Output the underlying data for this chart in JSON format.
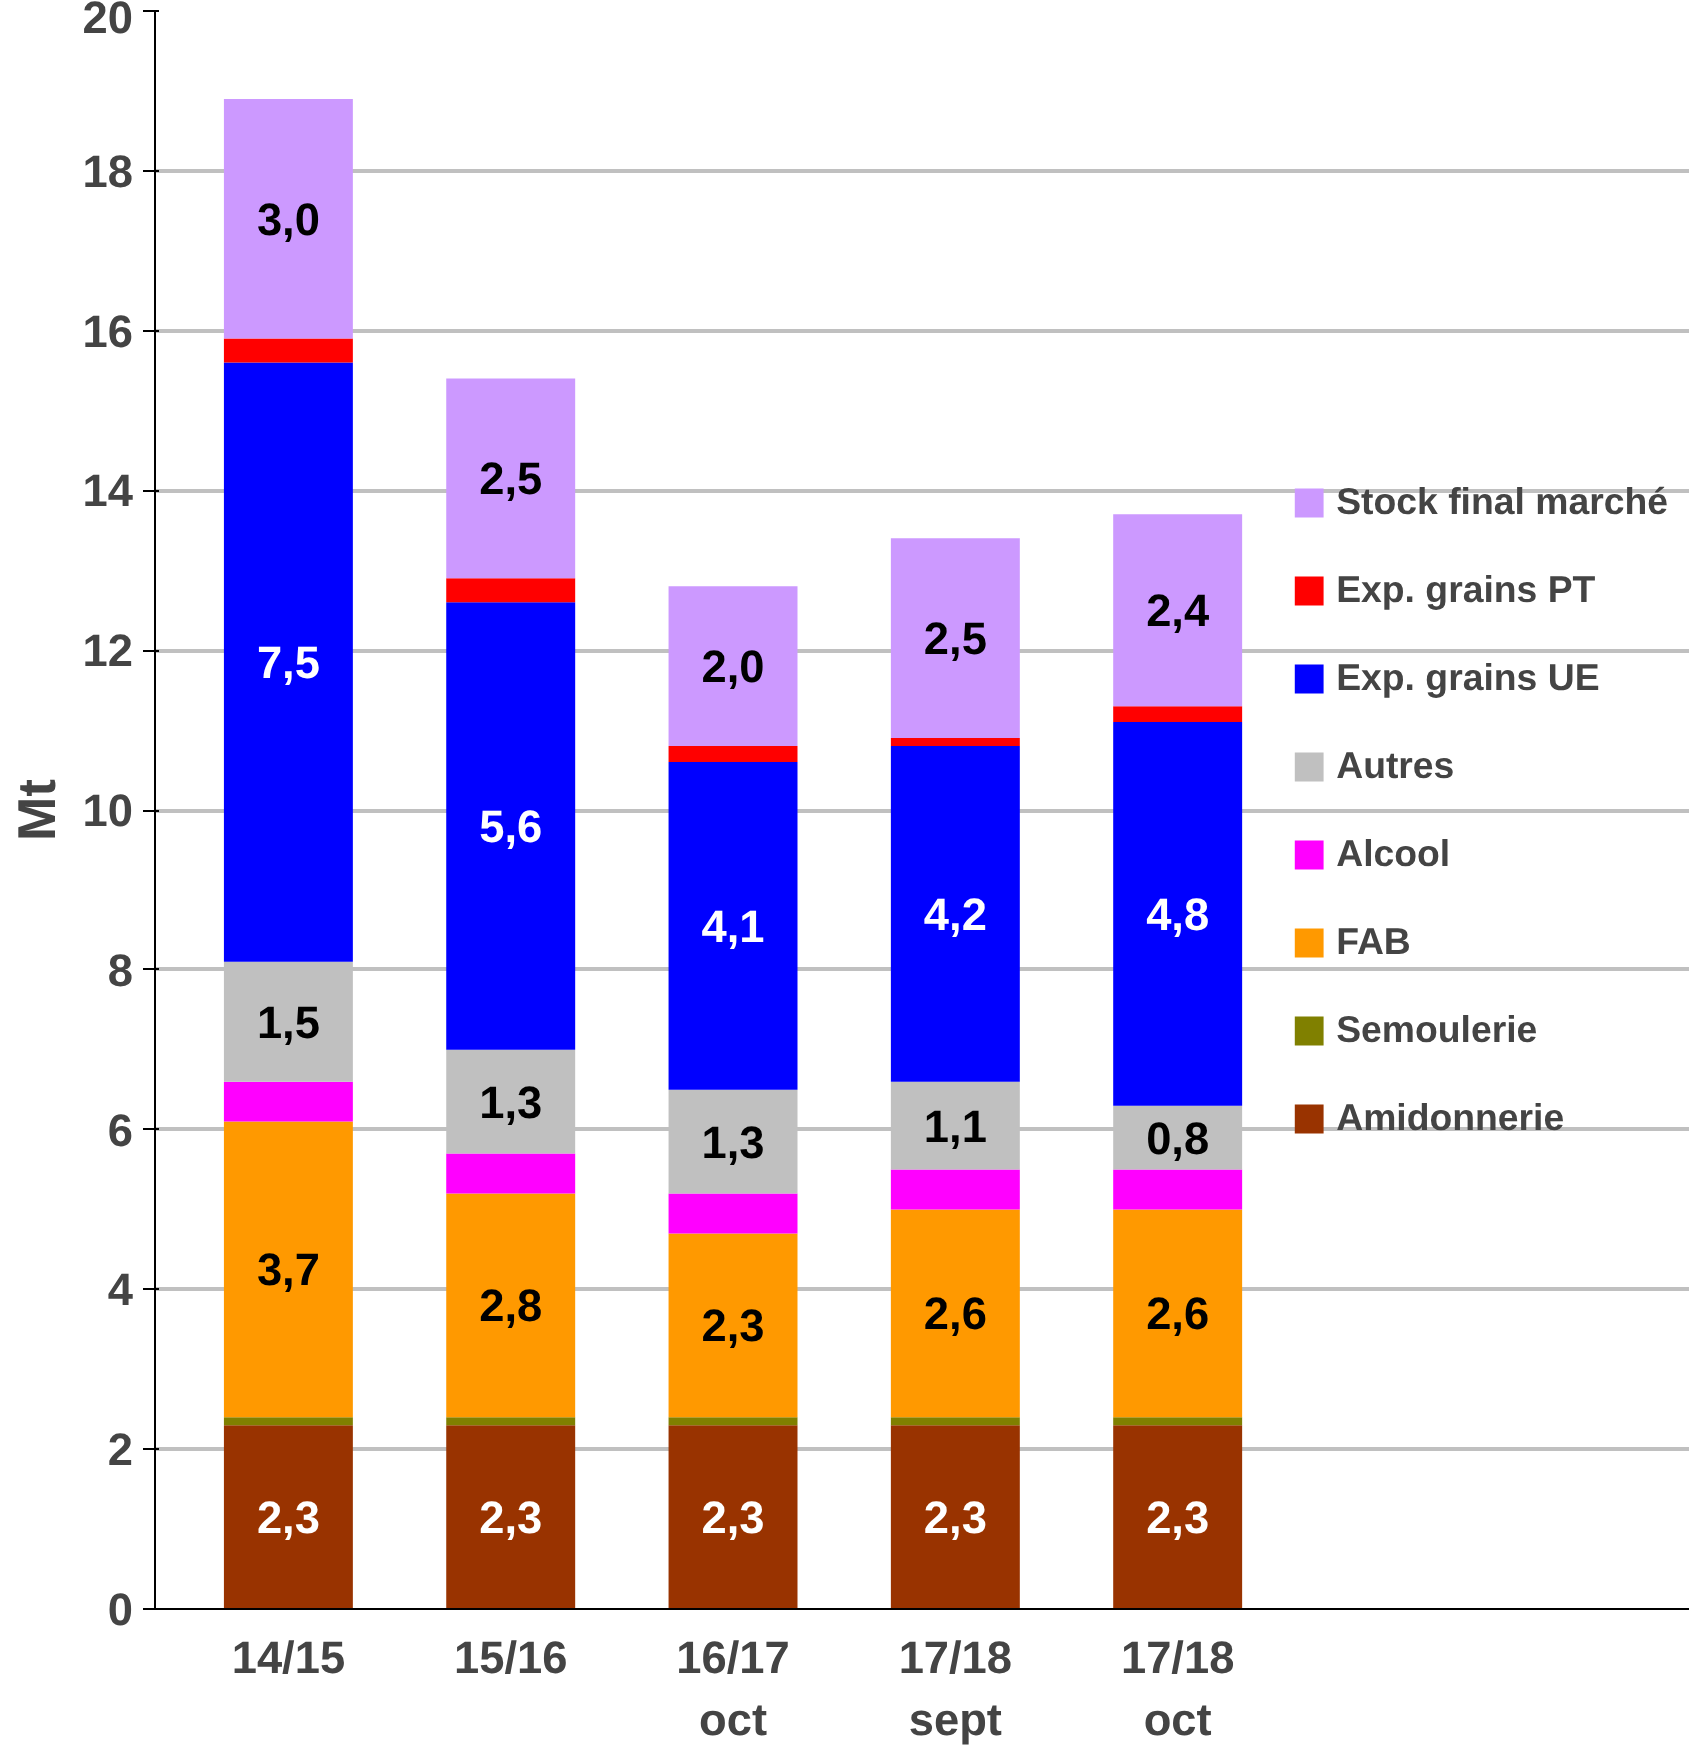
{
  "chart_data": {
    "type": "bar",
    "stacked": true,
    "ylabel": "Mt",
    "categories": [
      "14/15",
      "15/16",
      "16/17\noct",
      "17/18\nsept",
      "17/18\noct"
    ],
    "ylim": [
      0,
      20
    ],
    "yticks": [
      0,
      2,
      4,
      6,
      8,
      10,
      12,
      14,
      16,
      18,
      20
    ],
    "grid": "y",
    "legend": "right",
    "series": [
      {
        "name": "Amidonnerie",
        "color": "#993300",
        "values": [
          2.3,
          2.3,
          2.3,
          2.3,
          2.3
        ],
        "value_labels": [
          "2,3",
          "2,3",
          "2,3",
          "2,3",
          "2,3"
        ]
      },
      {
        "name": "Semoulerie",
        "color": "#808000",
        "values": [
          0.1,
          0.1,
          0.1,
          0.1,
          0.1
        ]
      },
      {
        "name": "FAB",
        "color": "#ff9900",
        "values": [
          3.7,
          2.8,
          2.3,
          2.6,
          2.6
        ],
        "value_labels": [
          "3,7",
          "2,8",
          "2,3",
          "2,6",
          "2,6"
        ]
      },
      {
        "name": "Alcool",
        "color": "#ff00ff",
        "values": [
          0.5,
          0.5,
          0.5,
          0.5,
          0.5
        ]
      },
      {
        "name": "Autres",
        "color": "#c0c0c0",
        "values": [
          1.5,
          1.3,
          1.3,
          1.1,
          0.8
        ],
        "value_labels": [
          "1,5",
          "1,3",
          "1,3",
          "1,1",
          "0,8"
        ]
      },
      {
        "name": "Exp. grains UE",
        "color": "#0000ff",
        "values": [
          7.5,
          5.6,
          4.1,
          4.2,
          4.8
        ],
        "value_labels": [
          "7,5",
          "5,6",
          "4,1",
          "4,2",
          "4,8"
        ]
      },
      {
        "name": "Exp. grains PT",
        "color": "#ff0000",
        "values": [
          0.3,
          0.3,
          0.2,
          0.1,
          0.2
        ]
      },
      {
        "name": "Stock final marché",
        "color": "#cc99ff",
        "values": [
          3.0,
          2.5,
          2.0,
          2.5,
          2.4
        ],
        "value_labels": [
          "3,0",
          "2,5",
          "2,0",
          "2,5",
          "2,4"
        ]
      }
    ]
  }
}
